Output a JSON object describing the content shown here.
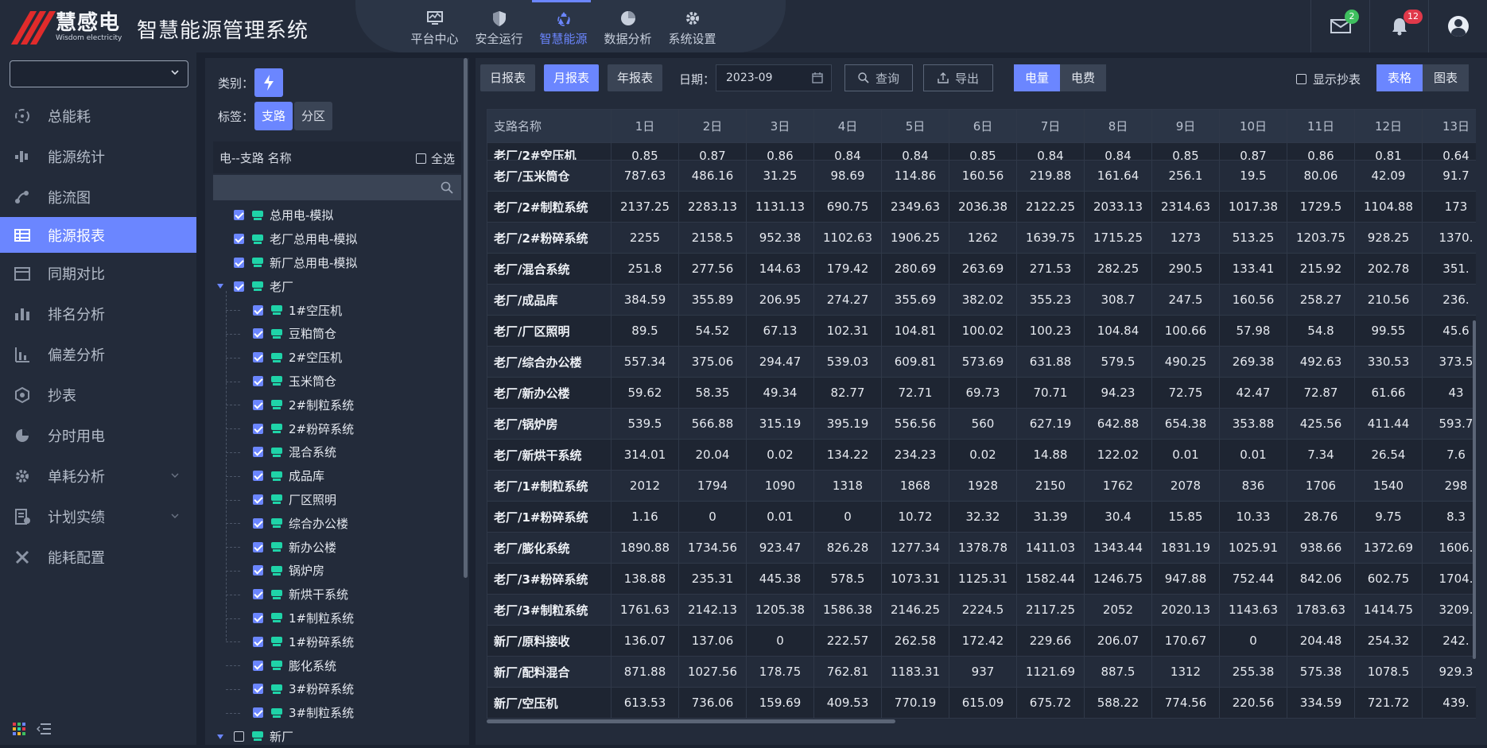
{
  "header": {
    "brand_cn": "慧感电",
    "brand_en": "Wisdom electricity",
    "system_title": "智慧能源管理系统",
    "nav": [
      {
        "label": "平台中心",
        "icon": "monitor-icon"
      },
      {
        "label": "安全运行",
        "icon": "shield-icon"
      },
      {
        "label": "智慧能源",
        "icon": "recycle-icon",
        "active": true
      },
      {
        "label": "数据分析",
        "icon": "pie-icon"
      },
      {
        "label": "系统设置",
        "icon": "gear-icon"
      }
    ],
    "mail_badge": "2",
    "bell_badge": "12"
  },
  "sidebar": {
    "select_value": "",
    "items": [
      {
        "label": "总能耗",
        "icon": "recycle-icon"
      },
      {
        "label": "能源统计",
        "icon": "stats-icon"
      },
      {
        "label": "能流图",
        "icon": "flow-icon"
      },
      {
        "label": "能源报表",
        "icon": "table-icon",
        "active": true
      },
      {
        "label": "同期对比",
        "icon": "calendar-icon"
      },
      {
        "label": "排名分析",
        "icon": "bar-icon"
      },
      {
        "label": "偏差分析",
        "icon": "deviation-icon"
      },
      {
        "label": "抄表",
        "icon": "meter-read-icon"
      },
      {
        "label": "分时用电",
        "icon": "pie-icon"
      },
      {
        "label": "单耗分析",
        "icon": "gear-icon",
        "expandable": true
      },
      {
        "label": "计划实绩",
        "icon": "plan-icon",
        "expandable": true
      },
      {
        "label": "能耗配置",
        "icon": "tools-icon"
      }
    ]
  },
  "tree": {
    "type_label": "类别：",
    "tag_label": "标签：",
    "tag_branch": "支路",
    "tag_zone": "分区",
    "head_title": "电--支路 名称",
    "select_all": "全选",
    "search_placeholder": "",
    "nodes": [
      {
        "label": "总用电-模拟",
        "level": 1,
        "checked": true
      },
      {
        "label": "老厂总用电-模拟",
        "level": 1,
        "checked": true
      },
      {
        "label": "新厂总用电-模拟",
        "level": 1,
        "checked": true
      },
      {
        "label": "老厂",
        "level": 1,
        "checked": true,
        "expanded": true,
        "folder": true
      },
      {
        "label": "1#空压机",
        "level": 2,
        "checked": true
      },
      {
        "label": "豆粕筒仓",
        "level": 2,
        "checked": true
      },
      {
        "label": "2#空压机",
        "level": 2,
        "checked": true
      },
      {
        "label": "玉米筒仓",
        "level": 2,
        "checked": true
      },
      {
        "label": "2#制粒系统",
        "level": 2,
        "checked": true
      },
      {
        "label": "2#粉碎系统",
        "level": 2,
        "checked": true
      },
      {
        "label": "混合系统",
        "level": 2,
        "checked": true
      },
      {
        "label": "成品库",
        "level": 2,
        "checked": true
      },
      {
        "label": "厂区照明",
        "level": 2,
        "checked": true
      },
      {
        "label": "综合办公楼",
        "level": 2,
        "checked": true
      },
      {
        "label": "新办公楼",
        "level": 2,
        "checked": true
      },
      {
        "label": "锅炉房",
        "level": 2,
        "checked": true
      },
      {
        "label": "新烘干系统",
        "level": 2,
        "checked": true
      },
      {
        "label": "1#制粒系统",
        "level": 2,
        "checked": true
      },
      {
        "label": "1#粉碎系统",
        "level": 2,
        "checked": true
      },
      {
        "label": "膨化系统",
        "level": 2,
        "checked": true
      },
      {
        "label": "3#粉碎系统",
        "level": 2,
        "checked": true
      },
      {
        "label": "3#制粒系统",
        "level": 2,
        "checked": true
      },
      {
        "label": "新厂",
        "level": 1,
        "checked": false,
        "expanded": true
      }
    ]
  },
  "toolbar": {
    "daily": "日报表",
    "monthly": "月报表",
    "yearly": "年报表",
    "date_label": "日期：",
    "date_value": "2023-09",
    "query": "查询",
    "export": "导出",
    "power": "电量",
    "fee": "电费",
    "show_copy": "显示抄表",
    "table_view": "表格",
    "chart_view": "图表"
  },
  "grid": {
    "name_header": "支路名称",
    "day_headers": [
      "1日",
      "2日",
      "3日",
      "4日",
      "5日",
      "6日",
      "7日",
      "8日",
      "9日",
      "10日",
      "11日",
      "12日",
      "13日"
    ],
    "partial_row": {
      "name": "老厂/2#空压机",
      "values": [
        "0.85",
        "0.87",
        "0.86",
        "0.84",
        "0.84",
        "0.85",
        "0.84",
        "0.84",
        "0.85",
        "0.87",
        "0.86",
        "0.81",
        "0.64"
      ]
    },
    "rows": [
      {
        "name": "老厂/玉米筒仓",
        "values": [
          "787.63",
          "486.16",
          "31.25",
          "98.69",
          "114.86",
          "160.56",
          "219.88",
          "161.64",
          "256.1",
          "19.5",
          "80.06",
          "42.09",
          "91.7"
        ]
      },
      {
        "name": "老厂/2#制粒系统",
        "values": [
          "2137.25",
          "2283.13",
          "1131.13",
          "690.75",
          "2349.63",
          "2036.38",
          "2122.25",
          "2033.13",
          "2314.63",
          "1017.38",
          "1729.5",
          "1104.88",
          "173"
        ]
      },
      {
        "name": "老厂/2#粉碎系统",
        "values": [
          "2255",
          "2158.5",
          "952.38",
          "1102.63",
          "1906.25",
          "1262",
          "1639.75",
          "1715.25",
          "1273",
          "513.25",
          "1203.75",
          "928.25",
          "1370."
        ]
      },
      {
        "name": "老厂/混合系统",
        "values": [
          "251.8",
          "277.56",
          "144.63",
          "179.42",
          "280.69",
          "263.69",
          "271.53",
          "282.25",
          "290.5",
          "133.41",
          "215.92",
          "202.78",
          "351."
        ]
      },
      {
        "name": "老厂/成品库",
        "values": [
          "384.59",
          "355.89",
          "206.95",
          "274.27",
          "355.69",
          "382.02",
          "355.23",
          "308.7",
          "247.5",
          "160.56",
          "258.27",
          "210.56",
          "236."
        ]
      },
      {
        "name": "老厂/厂区照明",
        "values": [
          "89.5",
          "54.52",
          "67.13",
          "102.31",
          "104.81",
          "100.02",
          "100.23",
          "104.84",
          "100.66",
          "57.98",
          "54.8",
          "99.55",
          "45.6"
        ]
      },
      {
        "name": "老厂/综合办公楼",
        "values": [
          "557.34",
          "375.06",
          "294.47",
          "539.03",
          "609.81",
          "573.69",
          "631.88",
          "579.5",
          "490.25",
          "269.38",
          "492.63",
          "330.53",
          "373.5"
        ]
      },
      {
        "name": "老厂/新办公楼",
        "values": [
          "59.62",
          "58.35",
          "49.34",
          "82.77",
          "72.71",
          "69.73",
          "70.71",
          "94.23",
          "72.75",
          "42.47",
          "72.87",
          "61.66",
          "43"
        ]
      },
      {
        "name": "老厂/锅炉房",
        "values": [
          "539.5",
          "566.88",
          "315.19",
          "395.19",
          "556.56",
          "560",
          "627.19",
          "642.88",
          "654.38",
          "353.88",
          "425.56",
          "411.44",
          "593.7"
        ]
      },
      {
        "name": "老厂/新烘干系统",
        "values": [
          "314.01",
          "20.04",
          "0.02",
          "134.22",
          "234.23",
          "0.02",
          "14.88",
          "122.02",
          "0.01",
          "0.01",
          "7.34",
          "26.54",
          "7.6"
        ]
      },
      {
        "name": "老厂/1#制粒系统",
        "values": [
          "2012",
          "1794",
          "1090",
          "1318",
          "1868",
          "1928",
          "2150",
          "1762",
          "2078",
          "836",
          "1706",
          "1540",
          "298"
        ]
      },
      {
        "name": "老厂/1#粉碎系统",
        "values": [
          "1.16",
          "0",
          "0.01",
          "0",
          "10.72",
          "32.32",
          "31.39",
          "30.4",
          "15.85",
          "10.33",
          "28.76",
          "9.75",
          "8.3"
        ]
      },
      {
        "name": "老厂/膨化系统",
        "values": [
          "1890.88",
          "1734.56",
          "923.47",
          "826.28",
          "1277.34",
          "1378.78",
          "1411.03",
          "1343.44",
          "1831.19",
          "1025.91",
          "938.66",
          "1372.69",
          "1606."
        ]
      },
      {
        "name": "老厂/3#粉碎系统",
        "values": [
          "138.88",
          "235.31",
          "445.38",
          "578.5",
          "1073.31",
          "1125.31",
          "1582.44",
          "1246.75",
          "947.88",
          "752.44",
          "842.06",
          "602.75",
          "1704."
        ]
      },
      {
        "name": "老厂/3#制粒系统",
        "values": [
          "1761.63",
          "2142.13",
          "1205.38",
          "1586.38",
          "2146.25",
          "2224.5",
          "2117.25",
          "2052",
          "2020.13",
          "1143.63",
          "1783.63",
          "1414.75",
          "3209."
        ]
      },
      {
        "name": "新厂/原料接收",
        "values": [
          "136.07",
          "137.06",
          "0",
          "222.57",
          "262.58",
          "172.42",
          "229.66",
          "206.07",
          "170.67",
          "0",
          "204.48",
          "254.32",
          "242."
        ]
      },
      {
        "name": "新厂/配料混合",
        "values": [
          "871.88",
          "1027.56",
          "178.75",
          "762.81",
          "1183.31",
          "937",
          "1121.69",
          "887.5",
          "1312",
          "255.38",
          "575.38",
          "1078.5",
          "929.3"
        ]
      },
      {
        "name": "新厂/空压机",
        "values": [
          "613.53",
          "736.06",
          "159.69",
          "409.53",
          "770.19",
          "615.09",
          "675.72",
          "588.22",
          "774.56",
          "220.56",
          "334.59",
          "721.72",
          "439."
        ]
      }
    ]
  }
}
